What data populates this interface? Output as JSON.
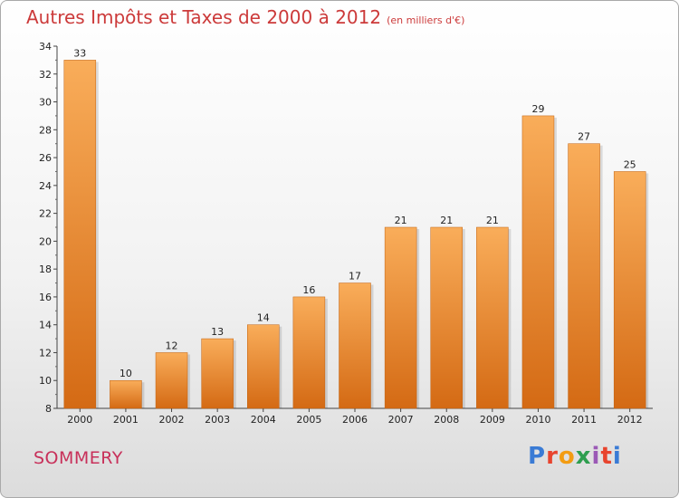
{
  "header": {
    "title": "Autres Impôts et Taxes de 2000 à 2012",
    "unit": "(en milliers d'€)"
  },
  "footer": {
    "city": "SOMMERY",
    "logo_text": "Proxiti"
  },
  "colors": {
    "bar_top": "#f9ad5a",
    "bar_bottom": "#d46a14",
    "title": "#cc3a3a",
    "city": "#c8305a"
  },
  "chart_data": {
    "type": "bar",
    "title": "Autres Impôts et Taxes de 2000 à 2012",
    "subtitle": "(en milliers d'€)",
    "xlabel": "",
    "ylabel": "",
    "categories": [
      "2000",
      "2001",
      "2002",
      "2003",
      "2004",
      "2005",
      "2006",
      "2007",
      "2008",
      "2009",
      "2010",
      "2011",
      "2012"
    ],
    "values": [
      33,
      10,
      12,
      13,
      14,
      16,
      17,
      21,
      21,
      21,
      29,
      27,
      25
    ],
    "ylim": [
      8,
      34
    ],
    "yticks": [
      8,
      10,
      12,
      14,
      16,
      18,
      20,
      22,
      24,
      26,
      28,
      30,
      32,
      34
    ],
    "grid": false,
    "legend": "none"
  }
}
